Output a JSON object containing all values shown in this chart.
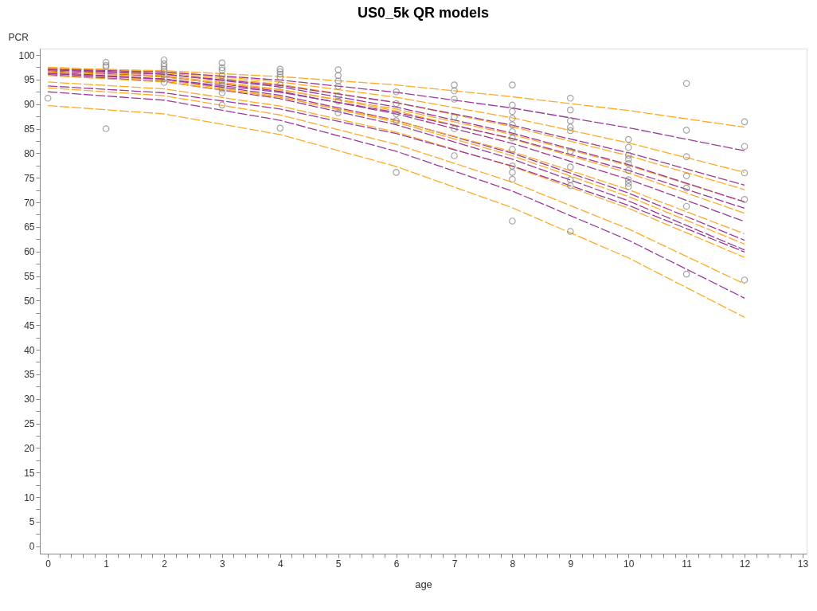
{
  "chart_data": {
    "type": "line",
    "title": "US0_5k QR models",
    "xlabel": "age",
    "ylabel": "PCR",
    "x": [
      0,
      2,
      4,
      6,
      8,
      10,
      12
    ],
    "xlim": [
      -0.14,
      13.07
    ],
    "ylim": [
      -1.5,
      101.3
    ],
    "xticks": [
      0,
      {
        "value": 0.2,
        "label": null
      },
      {
        "value": 0.4,
        "label": null
      },
      {
        "value": 0.6,
        "label": null
      },
      {
        "value": 0.8,
        "label": null
      },
      1,
      {
        "value": 1.2,
        "label": null
      },
      {
        "value": 1.4,
        "label": null
      },
      {
        "value": 1.6,
        "label": null
      },
      {
        "value": 1.8,
        "label": null
      },
      2,
      {
        "value": 2.2,
        "label": null
      },
      {
        "value": 2.4,
        "label": null
      },
      {
        "value": 2.6,
        "label": null
      },
      {
        "value": 2.8,
        "label": null
      },
      3,
      {
        "value": 3.2,
        "label": null
      },
      {
        "value": 3.4,
        "label": null
      },
      {
        "value": 3.6,
        "label": null
      },
      {
        "value": 3.8,
        "label": null
      },
      4,
      {
        "value": 4.2,
        "label": null
      },
      {
        "value": 4.4,
        "label": null
      },
      {
        "value": 4.6,
        "label": null
      },
      {
        "value": 4.8,
        "label": null
      },
      5,
      {
        "value": 5.2,
        "label": null
      },
      {
        "value": 5.4,
        "label": null
      },
      {
        "value": 5.6,
        "label": null
      },
      {
        "value": 5.8,
        "label": null
      },
      6,
      {
        "value": 6.2,
        "label": null
      },
      {
        "value": 6.4,
        "label": null
      },
      {
        "value": 6.6,
        "label": null
      },
      {
        "value": 6.8,
        "label": null
      },
      7,
      {
        "value": 7.2,
        "label": null
      },
      {
        "value": 7.4,
        "label": null
      },
      {
        "value": 7.6,
        "label": null
      },
      {
        "value": 7.8,
        "label": null
      },
      8,
      {
        "value": 8.2,
        "label": null
      },
      {
        "value": 8.4,
        "label": null
      },
      {
        "value": 8.6,
        "label": null
      },
      {
        "value": 8.8,
        "label": null
      },
      9,
      {
        "value": 9.2,
        "label": null
      },
      {
        "value": 9.4,
        "label": null
      },
      {
        "value": 9.6,
        "label": null
      },
      {
        "value": 9.8,
        "label": null
      },
      10,
      {
        "value": 10.2,
        "label": null
      },
      {
        "value": 10.4,
        "label": null
      },
      {
        "value": 10.6,
        "label": null
      },
      {
        "value": 10.8,
        "label": null
      },
      11,
      {
        "value": 11.2,
        "label": null
      },
      {
        "value": 11.4,
        "label": null
      },
      {
        "value": 11.6,
        "label": null
      },
      {
        "value": 11.8,
        "label": null
      },
      12,
      {
        "value": 12.2,
        "label": null
      },
      {
        "value": 12.4,
        "label": null
      },
      {
        "value": 12.6,
        "label": null
      },
      {
        "value": 12.8,
        "label": null
      },
      13
    ],
    "yticks": [
      0,
      {
        "value": 2.5,
        "label": null
      },
      5,
      {
        "value": 7.5,
        "label": null
      },
      10,
      {
        "value": 12.5,
        "label": null
      },
      15,
      {
        "value": 17.5,
        "label": null
      },
      20,
      {
        "value": 22.5,
        "label": null
      },
      25,
      {
        "value": 27.5,
        "label": null
      },
      30,
      {
        "value": 32.5,
        "label": null
      },
      35,
      {
        "value": 37.5,
        "label": null
      },
      40,
      {
        "value": 42.5,
        "label": null
      },
      45,
      {
        "value": 47.5,
        "label": null
      },
      50,
      {
        "value": 52.5,
        "label": null
      },
      55,
      {
        "value": 57.5,
        "label": null
      },
      60,
      {
        "value": 62.5,
        "label": null
      },
      65,
      {
        "value": 67.5,
        "label": null
      },
      70,
      {
        "value": 72.5,
        "label": null
      },
      75,
      {
        "value": 77.5,
        "label": null
      },
      80,
      {
        "value": 82.5,
        "label": null
      },
      85,
      {
        "value": 87.5,
        "label": null
      },
      90,
      {
        "value": 92.5,
        "label": null
      },
      95,
      {
        "value": 97.5,
        "label": null
      },
      100
    ],
    "grid": false,
    "line_style": "dashed",
    "series": [
      {
        "color": "#ffaa22",
        "values": [
          89.7,
          88.0,
          83.8,
          77.3,
          68.9,
          58.7,
          46.6
        ]
      },
      {
        "color": "#9b3a9b",
        "values": [
          92.5,
          90.8,
          86.7,
          80.4,
          72.3,
          62.3,
          50.5
        ]
      },
      {
        "color": "#ffaa22",
        "values": [
          93.3,
          91.7,
          87.8,
          81.8,
          74.1,
          64.6,
          53.4
        ]
      },
      {
        "color": "#ffaa22",
        "values": [
          94.5,
          93.1,
          89.6,
          84.3,
          77.3,
          68.8,
          58.8
        ]
      },
      {
        "color": "#9b3a9b",
        "values": [
          93.7,
          92.3,
          89.0,
          84.0,
          77.4,
          69.4,
          59.9
        ]
      },
      {
        "color": "#9b3a9b",
        "values": [
          96.0,
          94.6,
          91.1,
          85.8,
          78.8,
          70.3,
          60.3
        ]
      },
      {
        "color": "#ffaa22",
        "values": [
          96.3,
          94.9,
          91.5,
          86.3,
          79.5,
          71.2,
          61.5
        ]
      },
      {
        "color": "#9b3a9b",
        "values": [
          96.5,
          95.1,
          91.8,
          86.7,
          80.0,
          71.9,
          62.3
        ]
      },
      {
        "color": "#ffaa22",
        "values": [
          95.8,
          94.5,
          91.4,
          86.6,
          80.3,
          72.6,
          63.6
        ]
      },
      {
        "color": "#9b3a9b",
        "values": [
          96.8,
          95.6,
          92.6,
          88.0,
          82.0,
          74.7,
          66.1
        ]
      },
      {
        "color": "#ffaa22",
        "values": [
          97.0,
          95.8,
          93.0,
          88.6,
          82.9,
          76.0,
          67.8
        ]
      },
      {
        "color": "#9b3a9b",
        "values": [
          96.2,
          95.1,
          92.4,
          88.3,
          83.0,
          76.5,
          68.8
        ]
      },
      {
        "color": "#ffaa22",
        "values": [
          96.6,
          95.5,
          92.9,
          89.0,
          83.8,
          77.5,
          70.1
        ]
      },
      {
        "color": "#9b3a9b",
        "values": [
          97.2,
          96.1,
          93.5,
          89.4,
          84.1,
          77.7,
          70.1
        ]
      },
      {
        "color": "#ffaa22",
        "values": [
          97.4,
          96.4,
          94.0,
          90.3,
          85.4,
          79.5,
          72.6
        ]
      },
      {
        "color": "#9b3a9b",
        "values": [
          97.0,
          96.1,
          93.8,
          90.3,
          85.7,
          80.1,
          73.5
        ]
      },
      {
        "color": "#ffaa22",
        "values": [
          97.5,
          96.6,
          94.5,
          91.4,
          87.2,
          82.1,
          76.1
        ]
      },
      {
        "color": "#9b3a9b",
        "values": [
          97.2,
          96.5,
          94.9,
          92.4,
          89.2,
          85.2,
          80.5
        ]
      },
      {
        "color": "#ffaa22",
        "values": [
          97.3,
          96.8,
          95.6,
          93.9,
          91.5,
          88.7,
          85.3
        ]
      },
      {
        "type": "scatter",
        "color": "#808080",
        "marker": "circle",
        "x": [
          0,
          1,
          1,
          1,
          1,
          2,
          2,
          2,
          2,
          2,
          2,
          2,
          2,
          3,
          3,
          3,
          3,
          3,
          3,
          3,
          3,
          3,
          4,
          4,
          4,
          4,
          4,
          4,
          5,
          5,
          5,
          5,
          5,
          5,
          5,
          6,
          6,
          6,
          6,
          6,
          7,
          7,
          7,
          7,
          7,
          7,
          8,
          8,
          8,
          8,
          8,
          8,
          8,
          8,
          8,
          8,
          8,
          8,
          9,
          9,
          9,
          9,
          9,
          9,
          9,
          9,
          9,
          9,
          10,
          10,
          10,
          10,
          10,
          10,
          10,
          10,
          10,
          11,
          11,
          11,
          11,
          11,
          11,
          11,
          12,
          12,
          12,
          12,
          12
        ],
        "values": [
          91.2,
          98.5,
          97.9,
          97.6,
          85.0,
          99.0,
          98.2,
          97.7,
          97.1,
          96.6,
          96.0,
          95.2,
          94.4,
          98.4,
          97.4,
          96.9,
          95.8,
          94.7,
          93.9,
          93.1,
          92.3,
          89.8,
          97.1,
          96.6,
          96.1,
          95.5,
          93.9,
          85.1,
          97.0,
          95.8,
          94.7,
          93.6,
          91.7,
          90.6,
          88.2,
          92.5,
          90.1,
          88.0,
          86.6,
          76.1,
          93.9,
          92.7,
          91.0,
          87.4,
          85.0,
          79.5,
          93.9,
          89.8,
          88.5,
          87.1,
          85.8,
          84.4,
          83.1,
          80.8,
          77.4,
          76.1,
          74.7,
          66.2,
          91.2,
          88.8,
          86.6,
          85.3,
          84.6,
          80.4,
          77.2,
          74.6,
          73.4,
          64.1,
          82.8,
          81.2,
          79.6,
          78.8,
          77.9,
          76.5,
          74.6,
          73.9,
          73.2,
          94.2,
          84.7,
          79.3,
          75.4,
          72.9,
          69.2,
          55.4,
          86.4,
          81.4,
          76.0,
          70.6,
          54.2
        ]
      }
    ]
  }
}
